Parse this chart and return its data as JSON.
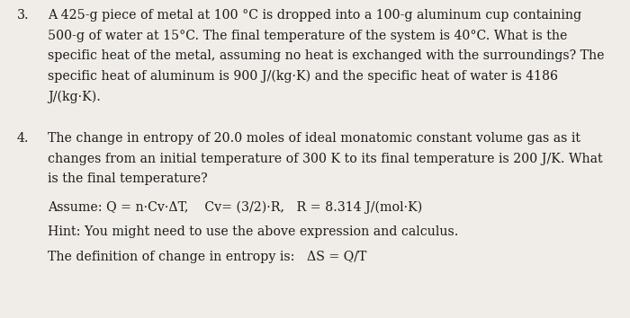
{
  "background_color": "#f0ede8",
  "text_color": "#1a1a1a",
  "fig_width": 7.0,
  "fig_height": 3.54,
  "q3_number": "3.",
  "q3_text_line1": "A 425-g piece of metal at 100 °C is dropped into a 100-g aluminum cup containing",
  "q3_text_line2": "500-g of water at 15°C. The final temperature of the system is 40°C. What is the",
  "q3_text_line3": "specific heat of the metal, assuming no heat is exchanged with the surroundings? The",
  "q3_text_line4": "specific heat of aluminum is 900 J/(kg·K) and the specific heat of water is 4186",
  "q3_text_line5": "J/(kg·K).",
  "q4_number": "4.",
  "q4_text_line1": "The change in entropy of 20.0 moles of ideal monatomic constant volume gas as it",
  "q4_text_line2": "changes from an initial temperature of 300 K to its final temperature is 200 J/K. What",
  "q4_text_line3": "is the final temperature?",
  "q4_assume": "Assume: Q = n·Cv·ΔT,    Cv= (3/2)·R,   R = 8.314 J/(mol·K)",
  "q4_hint": "Hint: You might need to use the above expression and calculus.",
  "q4_def": "The definition of change in entropy is:   ΔS = Q/T"
}
